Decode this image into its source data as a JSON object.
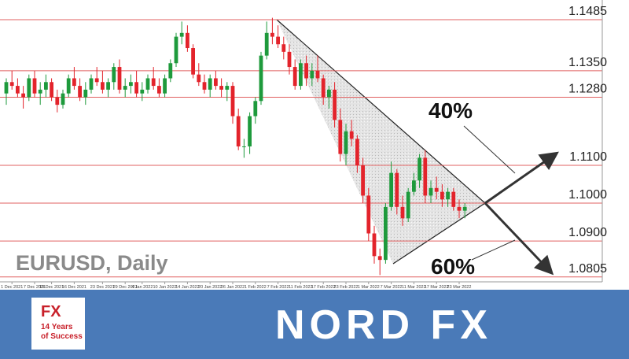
{
  "chart_data": {
    "type": "candlestick",
    "title": "EURUSD, Daily",
    "ohlc": [
      [
        1.129,
        1.133,
        1.126,
        1.132
      ],
      [
        1.132,
        1.135,
        1.13,
        1.131
      ],
      [
        1.131,
        1.133,
        1.128,
        1.129
      ],
      [
        1.129,
        1.131,
        1.125,
        1.128
      ],
      [
        1.128,
        1.134,
        1.127,
        1.133
      ],
      [
        1.133,
        1.135,
        1.128,
        1.129
      ],
      [
        1.129,
        1.132,
        1.126,
        1.13
      ],
      [
        1.13,
        1.134,
        1.128,
        1.132
      ],
      [
        1.132,
        1.133,
        1.127,
        1.128
      ],
      [
        1.128,
        1.13,
        1.124,
        1.126
      ],
      [
        1.126,
        1.13,
        1.125,
        1.129
      ],
      [
        1.129,
        1.134,
        1.128,
        1.133
      ],
      [
        1.133,
        1.136,
        1.13,
        1.131
      ],
      [
        1.131,
        1.133,
        1.127,
        1.128
      ],
      [
        1.128,
        1.132,
        1.126,
        1.13
      ],
      [
        1.13,
        1.134,
        1.129,
        1.133
      ],
      [
        1.133,
        1.136,
        1.131,
        1.132
      ],
      [
        1.132,
        1.135,
        1.129,
        1.13
      ],
      [
        1.13,
        1.133,
        1.128,
        1.132
      ],
      [
        1.132,
        1.137,
        1.13,
        1.136
      ],
      [
        1.136,
        1.138,
        1.129,
        1.13
      ],
      [
        1.13,
        1.133,
        1.128,
        1.131
      ],
      [
        1.131,
        1.134,
        1.129,
        1.132
      ],
      [
        1.132,
        1.135,
        1.128,
        1.129
      ],
      [
        1.129,
        1.132,
        1.127,
        1.13
      ],
      [
        1.13,
        1.134,
        1.129,
        1.133
      ],
      [
        1.133,
        1.136,
        1.13,
        1.131
      ],
      [
        1.131,
        1.133,
        1.128,
        1.129
      ],
      [
        1.129,
        1.134,
        1.128,
        1.133
      ],
      [
        1.133,
        1.138,
        1.132,
        1.137
      ],
      [
        1.137,
        1.145,
        1.136,
        1.144
      ],
      [
        1.144,
        1.148,
        1.142,
        1.145
      ],
      [
        1.145,
        1.147,
        1.14,
        1.141
      ],
      [
        1.141,
        1.142,
        1.133,
        1.134
      ],
      [
        1.134,
        1.137,
        1.131,
        1.132
      ],
      [
        1.132,
        1.134,
        1.129,
        1.13
      ],
      [
        1.13,
        1.134,
        1.128,
        1.133
      ],
      [
        1.133,
        1.135,
        1.13,
        1.131
      ],
      [
        1.131,
        1.133,
        1.128,
        1.13
      ],
      [
        1.13,
        1.132,
        1.127,
        1.131
      ],
      [
        1.131,
        1.132,
        1.121,
        1.123
      ],
      [
        1.123,
        1.125,
        1.114,
        1.115
      ],
      [
        1.115,
        1.117,
        1.112,
        1.115
      ],
      [
        1.115,
        1.124,
        1.113,
        1.123
      ],
      [
        1.123,
        1.128,
        1.121,
        1.127
      ],
      [
        1.127,
        1.14,
        1.126,
        1.139
      ],
      [
        1.139,
        1.148,
        1.138,
        1.145
      ],
      [
        1.145,
        1.149,
        1.142,
        1.144
      ],
      [
        1.144,
        1.147,
        1.141,
        1.142
      ],
      [
        1.142,
        1.144,
        1.138,
        1.14
      ],
      [
        1.14,
        1.142,
        1.134,
        1.136
      ],
      [
        1.136,
        1.138,
        1.13,
        1.131
      ],
      [
        1.131,
        1.138,
        1.13,
        1.137
      ],
      [
        1.137,
        1.139,
        1.131,
        1.133
      ],
      [
        1.133,
        1.137,
        1.131,
        1.135
      ],
      [
        1.135,
        1.139,
        1.132,
        1.133
      ],
      [
        1.133,
        1.134,
        1.126,
        1.128
      ],
      [
        1.128,
        1.131,
        1.125,
        1.13
      ],
      [
        1.13,
        1.132,
        1.12,
        1.122
      ],
      [
        1.122,
        1.125,
        1.111,
        1.113
      ],
      [
        1.113,
        1.121,
        1.11,
        1.119
      ],
      [
        1.119,
        1.122,
        1.115,
        1.117
      ],
      [
        1.117,
        1.118,
        1.108,
        1.11
      ],
      [
        1.11,
        1.112,
        1.1,
        1.102
      ],
      [
        1.102,
        1.104,
        1.09,
        1.092
      ],
      [
        1.092,
        1.094,
        1.084,
        1.086
      ],
      [
        1.086,
        1.088,
        1.081,
        1.085
      ],
      [
        1.085,
        1.1,
        1.084,
        1.099
      ],
      [
        1.099,
        1.111,
        1.098,
        1.108
      ],
      [
        1.108,
        1.109,
        1.097,
        1.099
      ],
      [
        1.099,
        1.102,
        1.094,
        1.096
      ],
      [
        1.096,
        1.104,
        1.095,
        1.103
      ],
      [
        1.103,
        1.108,
        1.102,
        1.106
      ],
      [
        1.106,
        1.113,
        1.104,
        1.112
      ],
      [
        1.112,
        1.114,
        1.1,
        1.102
      ],
      [
        1.102,
        1.106,
        1.1,
        1.104
      ],
      [
        1.104,
        1.107,
        1.101,
        1.103
      ],
      [
        1.103,
        1.105,
        1.099,
        1.101
      ],
      [
        1.101,
        1.104,
        1.099,
        1.103
      ],
      [
        1.103,
        1.104,
        1.098,
        1.099
      ],
      [
        1.099,
        1.101,
        1.096,
        1.098
      ],
      [
        1.098,
        1.1,
        1.096,
        1.099
      ]
    ],
    "up_color": "#1e9a3c",
    "down_color": "#e3232b",
    "ylim": [
      1.0792,
      1.1537
    ],
    "xticks": [
      {
        "value": 1,
        "label": "1 Dec 2021"
      },
      {
        "value": 5,
        "label": "7 Dec 2021"
      },
      {
        "value": 8,
        "label": "10 Dec 2021"
      },
      {
        "value": 12,
        "label": "16 Dec 2021"
      },
      {
        "value": 17,
        "label": "23 Dec 2021"
      },
      {
        "value": 21,
        "label": "29 Dec 2021"
      },
      {
        "value": 24,
        "label": "4 Jan 2022"
      },
      {
        "value": 28,
        "label": "10 Jan 2022"
      },
      {
        "value": 32,
        "label": "14 Jan 2022"
      },
      {
        "value": 36,
        "label": "20 Jan 2022"
      },
      {
        "value": 40,
        "label": "26 Jan 2022"
      },
      {
        "value": 44,
        "label": "1 Feb 2022"
      },
      {
        "value": 48,
        "label": "7 Feb 2022"
      },
      {
        "value": 52,
        "label": "11 Feb 2022"
      },
      {
        "value": 56,
        "label": "17 Feb 2022"
      },
      {
        "value": 60,
        "label": "23 Feb 2022"
      },
      {
        "value": 64,
        "label": "1 Mar 2022"
      },
      {
        "value": 68,
        "label": "7 Mar 2022"
      },
      {
        "value": 72,
        "label": "11 Mar 2022"
      },
      {
        "value": 76,
        "label": "17 Mar 2022"
      },
      {
        "value": 80,
        "label": "23 Mar 2022"
      }
    ],
    "levels": [
      {
        "value": 1.1485,
        "label": "1.1485"
      },
      {
        "value": 1.135,
        "label": "1.1350"
      },
      {
        "value": 1.128,
        "label": "1.1280"
      },
      {
        "value": 1.11,
        "label": "1.1100"
      },
      {
        "value": 1.1,
        "label": "1.1000"
      },
      {
        "value": 1.09,
        "label": "1.0900"
      },
      {
        "value": 1.0805,
        "label": "1.0805"
      }
    ],
    "level_color": "#e06060",
    "annotations": [
      "40%",
      "60%"
    ]
  },
  "branding": {
    "badge": {
      "logo": "FX",
      "line1": "14 Years",
      "line2": "of Success"
    },
    "logo": "NORD FX"
  }
}
